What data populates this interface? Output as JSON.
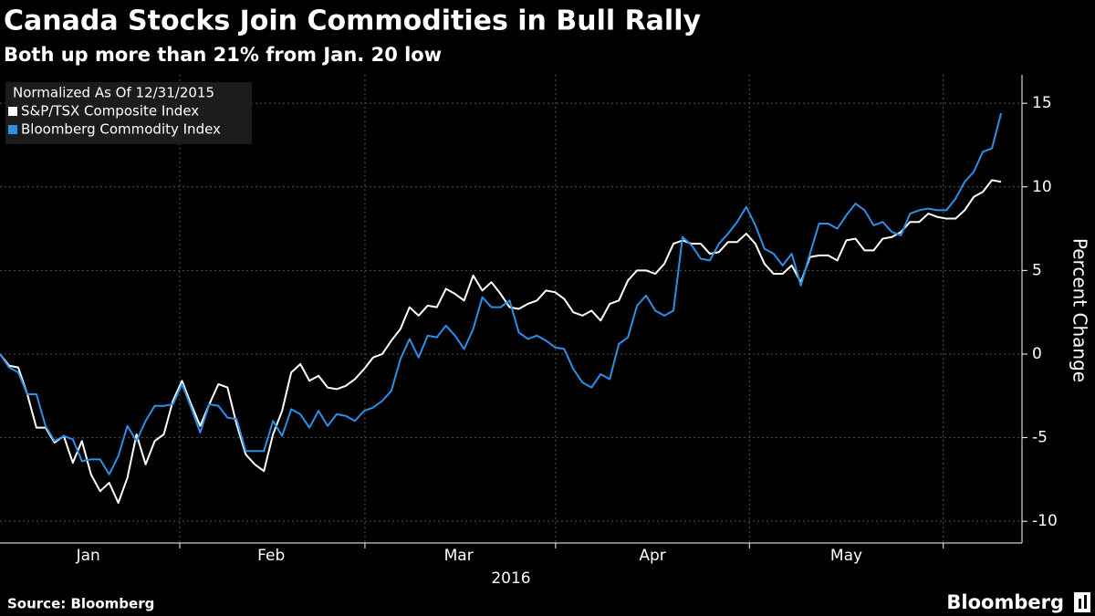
{
  "chart_data": {
    "type": "line",
    "title": "Canada Stocks Join Commodities in Bull Rally",
    "subtitle": "Both up more than 21% from Jan. 20 low",
    "legend_title": "Normalized As Of 12/31/2015",
    "legend": "upper left",
    "x_label": "2016",
    "y_label": "Percent Change",
    "xlim": [
      0,
      112.3
    ],
    "xticks": [
      {
        "value": 9.7,
        "label": "Jan"
      },
      {
        "value": 29.8,
        "label": "Feb"
      },
      {
        "value": 50.4,
        "label": "Mar"
      },
      {
        "value": 71.7,
        "label": "Apr"
      },
      {
        "value": 93.0,
        "label": "May"
      }
    ],
    "ylim": [
      -11.3,
      16.7
    ],
    "yticks": [
      -10,
      -5,
      0,
      5,
      10,
      15
    ],
    "grid": true,
    "series": [
      {
        "name": "S&P/TSX Composite Index",
        "color": "#ffffff",
        "values": [
          0,
          -0.7,
          -0.8,
          -2.4,
          -4.4,
          -4.4,
          -5.3,
          -4.9,
          -6.5,
          -5.2,
          -7.2,
          -8.2,
          -7.7,
          -8.9,
          -7.4,
          -4.8,
          -6.6,
          -5.2,
          -4.8,
          -2.8,
          -1.6,
          -3.0,
          -4.3,
          -3.0,
          -1.8,
          -2.0,
          -4.2,
          -6.0,
          -6.6,
          -7.0,
          -4.8,
          -3.4,
          -1.1,
          -0.6,
          -1.6,
          -1.3,
          -2.0,
          -2.1,
          -1.9,
          -1.5,
          -0.9,
          -0.2,
          0.0,
          0.8,
          1.5,
          2.8,
          2.3,
          2.9,
          2.8,
          3.9,
          3.6,
          3.2,
          4.7,
          3.8,
          4.3,
          3.6,
          2.8,
          2.7,
          3.0,
          3.2,
          3.8,
          3.7,
          3.3,
          2.5,
          2.3,
          2.6,
          2.0,
          3.0,
          3.2,
          4.4,
          5.0,
          5.0,
          4.8,
          5.4,
          6.6,
          6.8,
          6.6,
          6.6,
          6.0,
          6.1,
          6.7,
          6.7,
          7.2,
          6.6,
          5.4,
          4.8,
          4.8,
          5.3,
          4.3,
          5.8,
          5.9,
          5.9,
          5.6,
          6.8,
          6.9,
          6.2,
          6.2,
          6.9,
          7.0,
          7.3,
          7.9,
          7.9,
          8.4,
          8.2,
          8.1,
          8.1,
          8.6,
          9.4,
          9.7,
          10.4,
          10.3
        ]
      },
      {
        "name": "Bloomberg Commodity Index",
        "color": "#2d8fe6",
        "values": [
          0,
          -0.8,
          -1.1,
          -2.4,
          -2.4,
          -4.3,
          -5.2,
          -4.9,
          -5.1,
          -6.4,
          -6.3,
          -6.3,
          -7.2,
          -6.1,
          -4.3,
          -5.2,
          -4.0,
          -3.1,
          -3.1,
          -3.0,
          -1.8,
          -3.2,
          -4.7,
          -3.0,
          -3.1,
          -3.8,
          -3.9,
          -5.8,
          -5.8,
          -5.8,
          -4.0,
          -4.9,
          -3.3,
          -3.6,
          -4.4,
          -3.4,
          -4.3,
          -3.6,
          -3.7,
          -4.0,
          -3.4,
          -3.2,
          -2.8,
          -2.2,
          -0.3,
          0.9,
          -0.2,
          1.1,
          1.0,
          1.7,
          1.1,
          0.3,
          1.5,
          3.4,
          2.8,
          2.8,
          3.2,
          1.3,
          0.9,
          1.1,
          0.8,
          0.4,
          0.3,
          -0.9,
          -1.7,
          -2.0,
          -1.2,
          -1.5,
          0.6,
          1.0,
          2.9,
          3.5,
          2.6,
          2.3,
          2.6,
          7.0,
          6.5,
          5.7,
          5.6,
          6.6,
          7.2,
          7.9,
          8.8,
          7.7,
          6.3,
          6.0,
          5.3,
          6.0,
          4.1,
          6.0,
          7.8,
          7.8,
          7.5,
          8.3,
          9.0,
          8.6,
          7.7,
          7.9,
          7.3,
          7.1,
          8.4,
          8.6,
          8.7,
          8.6,
          8.6,
          9.3,
          10.3,
          10.9,
          12.1,
          12.3,
          14.4
        ]
      }
    ]
  },
  "footer": {
    "source": "Source: Bloomberg",
    "brand": "Bloomberg"
  }
}
